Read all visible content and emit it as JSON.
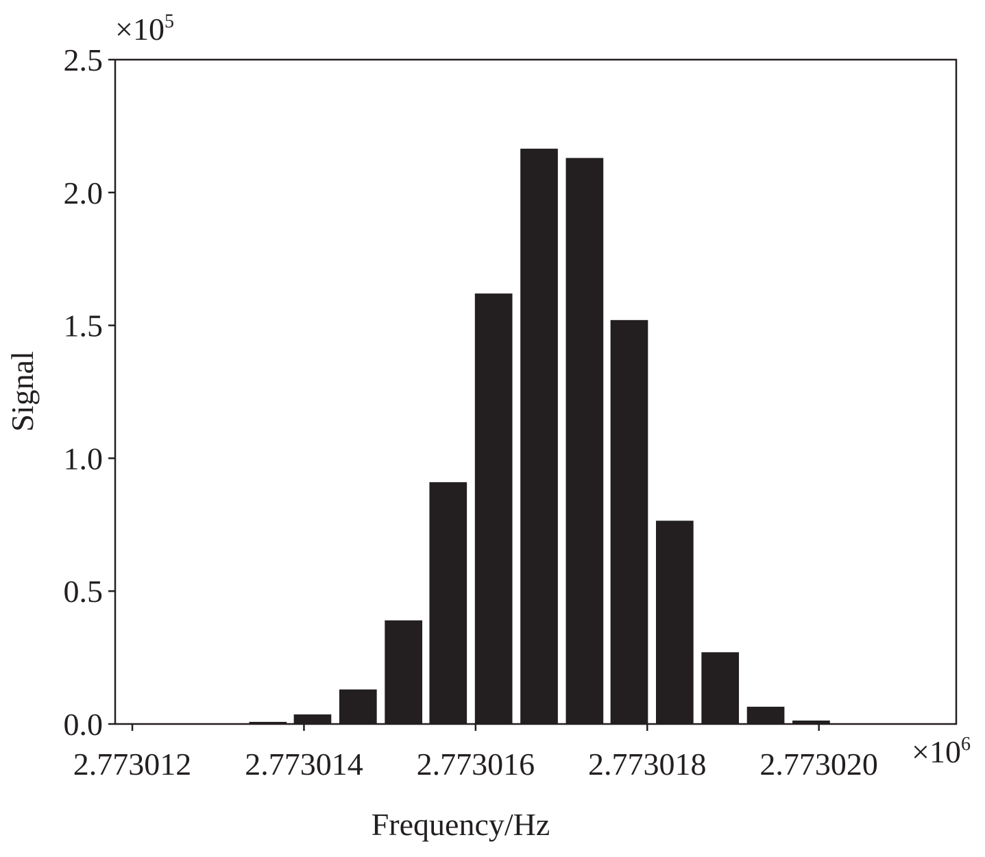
{
  "chart_data": {
    "type": "bar",
    "x_label": "Frequency/Hz",
    "y_label": "Signal",
    "x_offset_base": "×10",
    "x_offset_exponent": "6",
    "y_offset_base": "×10",
    "y_offset_exponent": "5",
    "x": [
      2.77301358,
      2.7730141,
      2.77301463,
      2.77301516,
      2.77301568,
      2.77301621,
      2.77301674,
      2.77301727,
      2.77301779,
      2.77301832,
      2.77301885,
      2.77301938,
      2.77301991
    ],
    "values": [
      0.008,
      0.036,
      0.13,
      0.39,
      0.91,
      1.62,
      2.165,
      2.13,
      1.52,
      0.765,
      0.27,
      0.065,
      0.013
    ],
    "color": "#231f20",
    "xlim": [
      2.7730118,
      2.7730216
    ],
    "xticks": [
      2.773012,
      2.773014,
      2.773016,
      2.773018,
      {
        "value": 2.77302,
        "label": "2.773020"
      }
    ],
    "ylim": [
      0,
      2.5
    ],
    "yticks": [
      {
        "value": 0,
        "label": "0.0"
      },
      0.5,
      {
        "value": 1,
        "label": "1.0"
      },
      1.5,
      {
        "value": 2,
        "label": "2.0"
      },
      2.5
    ],
    "grid": false
  }
}
